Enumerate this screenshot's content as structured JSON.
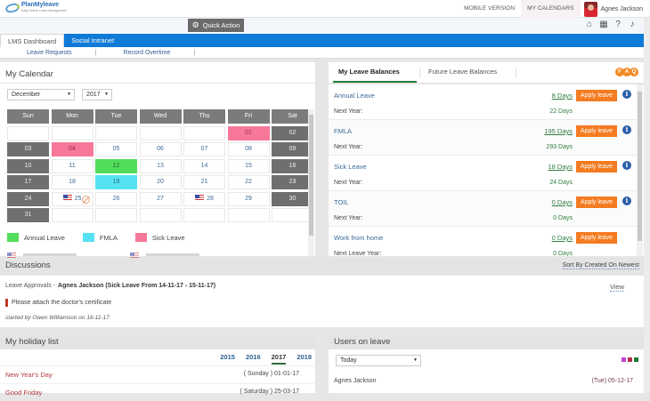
{
  "app": {
    "logo_name": "PlanMyleave",
    "logo_tagline": "Easy Online Leave Management"
  },
  "topbar": {
    "links": [
      {
        "label": "MOBILE VERSION",
        "active": false
      },
      {
        "label": "MY CALENDARS",
        "active": true
      }
    ],
    "user_name": "Agnes Jackson"
  },
  "subbar": {
    "quick_action_label": "Quick Action",
    "icons": [
      "home-icon",
      "calendar-icon",
      "help-icon",
      "bell-icon"
    ]
  },
  "nav": {
    "tabs": [
      {
        "label": "LMS Dashboard",
        "active": true
      },
      {
        "label": "Social Intranet",
        "active": false
      }
    ],
    "subnav": [
      {
        "label": "Leave Requests"
      },
      {
        "label": "Record Overtime"
      }
    ]
  },
  "calendar": {
    "title": "My Calendar",
    "month": "December",
    "year": "2017",
    "weekdays": [
      "Sun",
      "Mon",
      "Tue",
      "Wed",
      "Thu",
      "Fri",
      "Sat"
    ],
    "weeks": [
      [
        {
          "d": ""
        },
        {
          "d": ""
        },
        {
          "d": ""
        },
        {
          "d": ""
        },
        {
          "d": ""
        },
        {
          "d": "01",
          "t": "sick"
        },
        {
          "d": "02",
          "t": "weekend"
        }
      ],
      [
        {
          "d": "03",
          "t": "weekend"
        },
        {
          "d": "04",
          "t": "sick"
        },
        {
          "d": "05"
        },
        {
          "d": "06"
        },
        {
          "d": "07"
        },
        {
          "d": "08"
        },
        {
          "d": "09",
          "t": "weekend"
        }
      ],
      [
        {
          "d": "10",
          "t": "weekend"
        },
        {
          "d": "11"
        },
        {
          "d": "12",
          "t": "annual"
        },
        {
          "d": "13"
        },
        {
          "d": "14"
        },
        {
          "d": "15"
        },
        {
          "d": "16",
          "t": "weekend"
        }
      ],
      [
        {
          "d": "17",
          "t": "weekend"
        },
        {
          "d": "18"
        },
        {
          "d": "19",
          "t": "fmla"
        },
        {
          "d": "20"
        },
        {
          "d": "21"
        },
        {
          "d": "22"
        },
        {
          "d": "23",
          "t": "weekend"
        }
      ],
      [
        {
          "d": "24",
          "t": "weekend"
        },
        {
          "d": "25",
          "flag": true,
          "blocked": true
        },
        {
          "d": "26"
        },
        {
          "d": "27"
        },
        {
          "d": "28",
          "flag": true
        },
        {
          "d": "29"
        },
        {
          "d": "30",
          "t": "weekend"
        }
      ],
      [
        {
          "d": "31",
          "t": "weekend"
        },
        {
          "d": ""
        },
        {
          "d": ""
        },
        {
          "d": ""
        },
        {
          "d": ""
        },
        {
          "d": ""
        },
        {
          "d": ""
        }
      ]
    ],
    "legend": [
      {
        "label": "Annual Leave",
        "color": "#52dd5a"
      },
      {
        "label": "FMLA",
        "color": "#55e3f3"
      },
      {
        "label": "Sick Leave",
        "color": "#f77799"
      }
    ]
  },
  "leave_balances": {
    "tabs": [
      {
        "label": "My Leave Balances",
        "active": true
      },
      {
        "label": "Future Leave Balances",
        "active": false
      }
    ],
    "faq_letters": [
      "F",
      "A",
      "Q"
    ],
    "apply_label": "Apply leave",
    "rows": [
      {
        "name": "Annual Leave",
        "days": "8 Days",
        "next_label": "Next Year:",
        "next_days": "22 Days",
        "info": true
      },
      {
        "name": "FMLA",
        "days": "195 Days",
        "next_label": "Next Year:",
        "next_days": "293 Days",
        "info": true
      },
      {
        "name": "Sick Leave",
        "days": "18 Days",
        "next_label": "Next Year:",
        "next_days": "24 Days",
        "info": true
      },
      {
        "name": "TOIL",
        "days": "0 Days",
        "next_label": "Next Year:",
        "next_days": "0 Days",
        "info": true
      },
      {
        "name": "Work from home",
        "days": "0 Days",
        "next_label": "Next Leave Year:",
        "next_days": "0 Days",
        "info": false
      }
    ]
  },
  "discussions": {
    "title": "Discussions",
    "sort_label": "Sort By Created On Newest",
    "item": {
      "category": "Leave Approvals -",
      "subject": "Agnes Jackson (Sick Leave From 14-11-17 - 15-11-17)",
      "view_label": "View",
      "message": "Please attach the doctor's certificate",
      "started_by": "started by Owen Williamson on 16-11-17"
    }
  },
  "holidays": {
    "title": "My holiday list",
    "years": [
      {
        "label": "2015",
        "active": false
      },
      {
        "label": "2016",
        "active": false
      },
      {
        "label": "2017",
        "active": true
      },
      {
        "label": "2018",
        "active": false
      }
    ],
    "items": [
      {
        "name": "New Year's Day",
        "date": "( Sunday ) 01-01-17"
      },
      {
        "name": "Good Friday",
        "date": "( Saturday ) 25-03-17"
      }
    ]
  },
  "users_on_leave": {
    "title": "Users on leave",
    "filter": "Today",
    "colors": [
      "#c53fd6",
      "#b0304f",
      "#1f7a34"
    ],
    "items": [
      {
        "name": "Agnes Jackson",
        "date": "(Tue) 05-12-17"
      }
    ]
  }
}
